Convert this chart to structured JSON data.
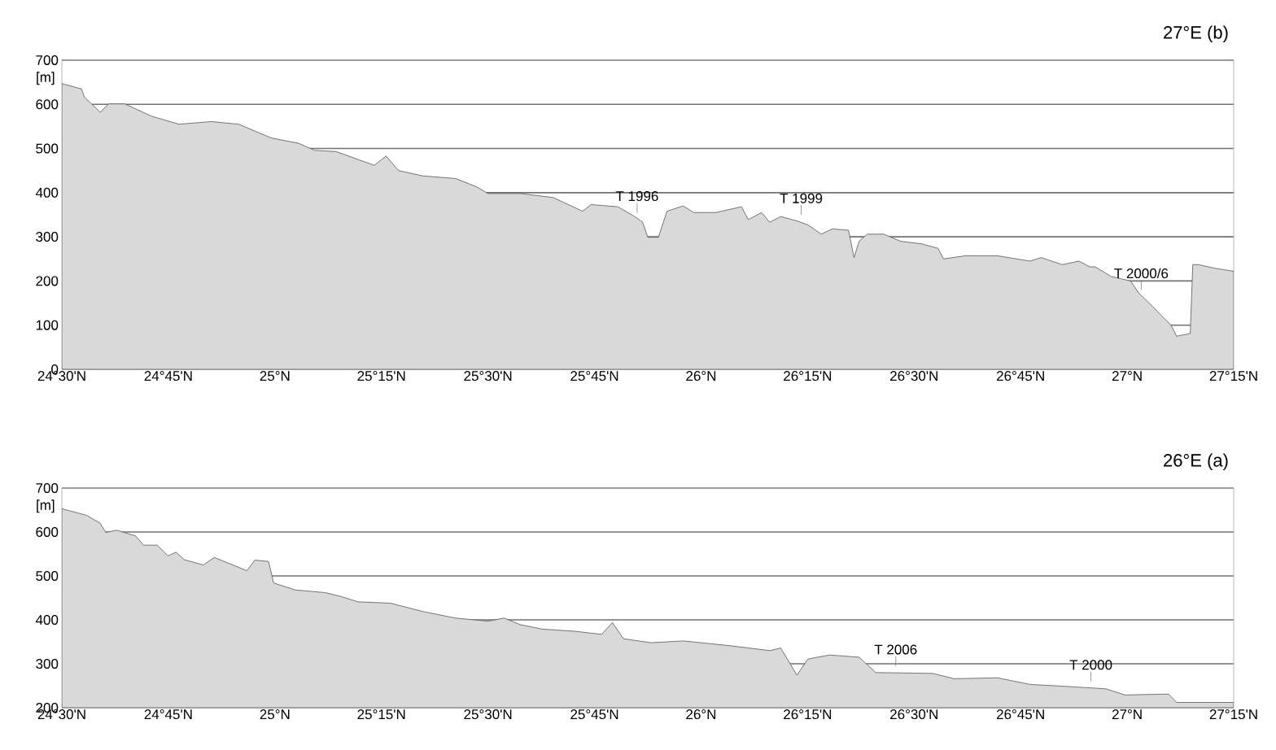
{
  "chart_data": [
    {
      "type": "area",
      "title": "27°E (b)",
      "ylabel": "[m]",
      "color": "#d9d9d9",
      "grid": "y",
      "xlim": [
        24.5,
        27.25
      ],
      "ylim": [
        0,
        700
      ],
      "yticks": [
        0,
        100,
        200,
        300,
        400,
        500,
        600,
        700
      ],
      "xticks": [
        {
          "value": 24.5,
          "label": "24°30'N"
        },
        {
          "value": 24.75,
          "label": "24°45'N"
        },
        {
          "value": 25,
          "label": "25°N"
        },
        {
          "value": 25.25,
          "label": "25°15'N"
        },
        {
          "value": 25.5,
          "label": "25°30'N"
        },
        {
          "value": 25.75,
          "label": "25°45'N"
        },
        {
          "value": 26,
          "label": "26°N"
        },
        {
          "value": 26.25,
          "label": "26°15'N"
        },
        {
          "value": 26.5,
          "label": "26°30'N"
        },
        {
          "value": 26.75,
          "label": "26°45'N"
        },
        {
          "value": 27,
          "label": "27°N"
        },
        {
          "value": 27.25,
          "label": "27°15'N"
        }
      ],
      "x": [
        24.5,
        24.546,
        24.553,
        24.581,
        24.59,
        24.61,
        24.648,
        24.711,
        24.775,
        24.851,
        24.915,
        24.991,
        25.055,
        25.093,
        25.144,
        25.233,
        25.261,
        25.29,
        25.347,
        25.424,
        25.474,
        25.5,
        25.576,
        25.653,
        25.722,
        25.742,
        25.805,
        25.844,
        25.863,
        25.875,
        25.9,
        25.92,
        25.958,
        25.983,
        26.034,
        26.095,
        26.111,
        26.142,
        26.161,
        26.187,
        26.225,
        26.251,
        26.282,
        26.308,
        26.346,
        26.359,
        26.371,
        26.39,
        26.429,
        26.468,
        26.518,
        26.556,
        26.569,
        26.62,
        26.696,
        26.772,
        26.798,
        26.848,
        26.887,
        26.912,
        26.925,
        26.963,
        27.008,
        27.027,
        27.059,
        27.078,
        27.103,
        27.116,
        27.148,
        27.154,
        27.167,
        27.205,
        27.25
      ],
      "values": [
        647,
        635,
        616,
        591,
        582,
        601,
        601,
        573,
        555,
        561,
        555,
        524,
        512,
        496,
        493,
        462,
        483,
        450,
        438,
        432,
        413,
        398,
        398,
        389,
        358,
        373,
        368,
        346,
        333,
        299,
        299,
        358,
        370,
        355,
        355,
        368,
        339,
        355,
        333,
        346,
        336,
        327,
        306,
        318,
        315,
        253,
        290,
        306,
        306,
        290,
        284,
        274,
        250,
        257,
        257,
        245,
        253,
        237,
        245,
        232,
        232,
        210,
        200,
        173,
        143,
        124,
        100,
        75,
        81,
        237,
        237,
        229,
        222
      ],
      "annotations": [
        {
          "text": "T 1996",
          "x": 25.85,
          "y": 340
        },
        {
          "text": "T 1999",
          "x": 26.235,
          "y": 335
        },
        {
          "text": "T 2000/6",
          "x": 27.033,
          "y": 165
        }
      ]
    },
    {
      "type": "area",
      "title": "26°E (a)",
      "ylabel": "[m]",
      "color": "#d9d9d9",
      "grid": "y",
      "xlim": [
        24.5,
        27.25
      ],
      "ylim": [
        200,
        700
      ],
      "yticks": [
        200,
        300,
        400,
        500,
        600,
        700
      ],
      "xticks": [
        {
          "value": 24.5,
          "label": "24°30'N"
        },
        {
          "value": 24.75,
          "label": "24°45'N"
        },
        {
          "value": 25,
          "label": "25°N"
        },
        {
          "value": 25.25,
          "label": "25°15'N"
        },
        {
          "value": 25.5,
          "label": "25°30'N"
        },
        {
          "value": 25.75,
          "label": "25°45'N"
        },
        {
          "value": 26,
          "label": "26°N"
        },
        {
          "value": 26.25,
          "label": "26°15'N"
        },
        {
          "value": 26.5,
          "label": "26°30'N"
        },
        {
          "value": 26.75,
          "label": "26°45'N"
        },
        {
          "value": 27,
          "label": "27°N"
        },
        {
          "value": 27.25,
          "label": "27°15'N"
        }
      ],
      "x": [
        24.5,
        24.558,
        24.59,
        24.603,
        24.629,
        24.673,
        24.692,
        24.724,
        24.749,
        24.768,
        24.787,
        24.832,
        24.858,
        24.934,
        24.953,
        24.985,
        24.997,
        25.048,
        25.118,
        25.156,
        25.195,
        25.271,
        25.347,
        25.424,
        25.5,
        25.538,
        25.576,
        25.627,
        25.704,
        25.767,
        25.792,
        25.818,
        25.882,
        25.958,
        26.06,
        26.162,
        26.187,
        26.225,
        26.251,
        26.302,
        26.371,
        26.41,
        26.544,
        26.594,
        26.696,
        26.772,
        26.848,
        26.95,
        26.995,
        27.097,
        27.116,
        27.25
      ],
      "values": [
        653,
        638,
        620,
        599,
        604,
        591,
        570,
        570,
        546,
        554,
        537,
        525,
        542,
        512,
        536,
        533,
        484,
        468,
        462,
        453,
        441,
        438,
        419,
        404,
        397,
        404,
        389,
        379,
        374,
        367,
        394,
        357,
        348,
        352,
        342,
        330,
        336,
        274,
        311,
        320,
        315,
        280,
        278,
        266,
        268,
        253,
        249,
        243,
        229,
        231,
        212,
        212
      ],
      "annotations": [
        {
          "text": "T 2006",
          "x": 26.457,
          "y": 280
        },
        {
          "text": "T 2000",
          "x": 26.915,
          "y": 245
        }
      ]
    }
  ]
}
